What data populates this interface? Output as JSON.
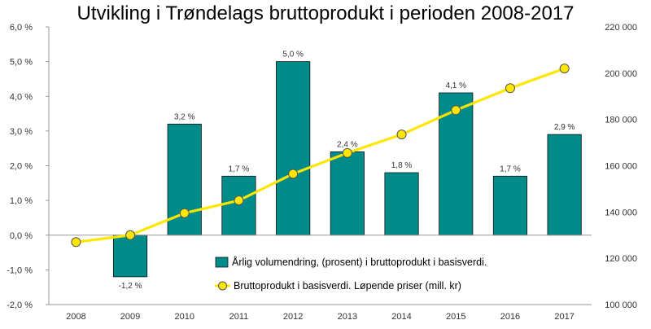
{
  "chart_data": {
    "type": "bar",
    "title": "Utvikling i Trøndelags bruttoprodukt i perioden 2008-2017",
    "categories": [
      "2008",
      "2009",
      "2010",
      "2011",
      "2012",
      "2013",
      "2014",
      "2015",
      "2016",
      "2017"
    ],
    "series": [
      {
        "name": "Årlig volumendring, (prosent) i bruttoprodukt i basisverdi.",
        "type": "bar",
        "axis": "left",
        "color": "#008B8B",
        "values": [
          null,
          -1.2,
          3.2,
          1.7,
          5.0,
          2.4,
          1.8,
          4.1,
          1.7,
          2.9
        ],
        "labels": [
          "",
          "-1,2 %",
          "3,2 %",
          "1,7 %",
          "5,0 %",
          "2,4 %",
          "1,8 %",
          "4,1 %",
          "1,7 %",
          "2,9 %"
        ]
      },
      {
        "name": "Bruttoprodukt i basisverdi. Løpende priser (mill. kr)",
        "type": "line",
        "axis": "right",
        "color": "#FFE600",
        "values": [
          127000,
          130000,
          139500,
          145000,
          156500,
          165500,
          173500,
          184000,
          193500,
          202000
        ]
      }
    ],
    "y_left": {
      "min": -2,
      "max": 6,
      "step": 1,
      "tick_labels": [
        "-2,0 %",
        "-1,0 %",
        "0,0 %",
        "1,0 %",
        "2,0 %",
        "3,0 %",
        "4,0 %",
        "5,0 %",
        "6,0 %"
      ]
    },
    "y_right": {
      "min": 100000,
      "max": 220000,
      "step": 20000,
      "tick_labels": [
        "100 000",
        "120 000",
        "140 000",
        "160 000",
        "180 000",
        "200 000",
        "220 000"
      ]
    },
    "grid": false,
    "legend_position": "bottom-right, inside plot"
  }
}
